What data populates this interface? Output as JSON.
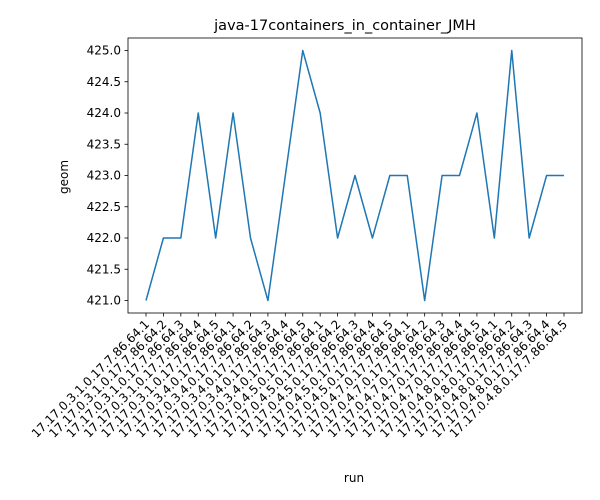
{
  "chart_data": {
    "type": "line",
    "title": "java-17containers_in_container_JMH",
    "xlabel": "run",
    "ylabel": "geom",
    "ylim": [
      420.8,
      425.2
    ],
    "yticks": [
      421.0,
      421.5,
      422.0,
      422.5,
      423.0,
      423.5,
      424.0,
      424.5,
      425.0
    ],
    "yticklabels": [
      "421.0",
      "421.5",
      "422.0",
      "422.5",
      "423.0",
      "423.5",
      "424.0",
      "424.5",
      "425.0"
    ],
    "grid": false,
    "line_color": "#1f77b4",
    "categories": [
      "17.17.0.3.1.0.17.7.86.64.1",
      "17.17.0.3.1.0.17.7.86.64.2",
      "17.17.0.3.1.0.17.7.86.64.3",
      "17.17.0.3.1.0.17.7.86.64.4",
      "17.17.0.3.1.0.17.7.86.64.5",
      "17.17.0.3.4.0.17.7.86.64.1",
      "17.17.0.3.4.0.17.7.86.64.2",
      "17.17.0.3.4.0.17.7.86.64.3",
      "17.17.0.3.4.0.17.7.86.64.4",
      "17.17.0.3.4.0.17.7.86.64.5",
      "17.17.0.4.5.0.17.7.86.64.1",
      "17.17.0.4.5.0.17.7.86.64.2",
      "17.17.0.4.5.0.17.7.86.64.3",
      "17.17.0.4.5.0.17.7.86.64.4",
      "17.17.0.4.5.0.17.7.86.64.5",
      "17.17.0.4.7.0.17.7.86.64.1",
      "17.17.0.4.7.0.17.7.86.64.2",
      "17.17.0.4.7.0.17.7.86.64.3",
      "17.17.0.4.7.0.17.7.86.64.4",
      "17.17.0.4.7.0.17.7.86.64.5",
      "17.17.0.4.8.0.17.7.86.64.1",
      "17.17.0.4.8.0.17.7.86.64.2",
      "17.17.0.4.8.0.17.7.86.64.3",
      "17.17.0.4.8.0.17.7.86.64.4",
      "17.17.0.4.8.0.17.7.86.64.5"
    ],
    "values": [
      421,
      422,
      422,
      424,
      422,
      424,
      422,
      421,
      423,
      425,
      424,
      422,
      423,
      422,
      423,
      423,
      421,
      423,
      423,
      424,
      422,
      425,
      422,
      423,
      423
    ]
  }
}
